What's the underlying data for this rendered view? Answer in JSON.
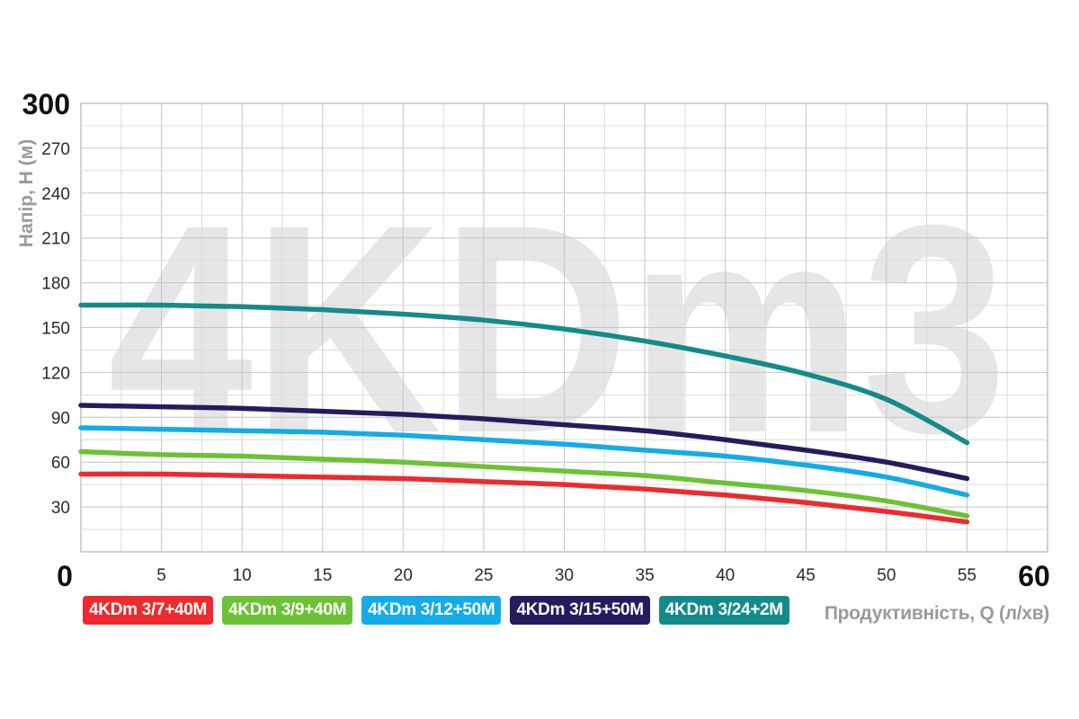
{
  "chart_data": {
    "type": "line",
    "watermark": "4KDm3",
    "ylabel": "Напір, Н (м)",
    "xlabel": "Продуктивність, Q (л/хв)",
    "xlim": [
      0,
      60
    ],
    "ylim": [
      0,
      300
    ],
    "x_ticks": [
      0,
      5,
      10,
      15,
      20,
      25,
      30,
      35,
      40,
      45,
      50,
      55,
      60
    ],
    "x_tick_labels": [
      "0",
      "5",
      "10",
      "15",
      "20",
      "25",
      "30",
      "35",
      "40",
      "45",
      "50",
      "55",
      "60"
    ],
    "y_ticks": [
      0,
      30,
      60,
      90,
      120,
      150,
      180,
      210,
      240,
      270,
      300
    ],
    "y_tick_labels": [
      "0",
      "30",
      "60",
      "90",
      "120",
      "150",
      "180",
      "210",
      "240",
      "270",
      "300"
    ],
    "grid": true,
    "legend_position": "bottom-left",
    "series": [
      {
        "name": "4KDm 3/7+40M",
        "color": "#ee2a2e",
        "x": [
          0,
          5,
          10,
          15,
          20,
          25,
          30,
          35,
          40,
          45,
          50,
          55
        ],
        "y": [
          52,
          52,
          51,
          50,
          49,
          47,
          45,
          42,
          38,
          33,
          27,
          20
        ]
      },
      {
        "name": "4KDm 3/9+40M",
        "color": "#6cc234",
        "x": [
          0,
          5,
          10,
          15,
          20,
          25,
          30,
          35,
          40,
          45,
          50,
          55
        ],
        "y": [
          67,
          65,
          64,
          62,
          60,
          57,
          54,
          51,
          46,
          41,
          34,
          24
        ]
      },
      {
        "name": "4KDm 3/12+50M",
        "color": "#13ace6",
        "x": [
          0,
          5,
          10,
          15,
          20,
          25,
          30,
          35,
          40,
          45,
          50,
          55
        ],
        "y": [
          83,
          82,
          81,
          80,
          78,
          75,
          72,
          68,
          64,
          58,
          50,
          38
        ]
      },
      {
        "name": "4KDm 3/15+50M",
        "color": "#271b5e",
        "x": [
          0,
          5,
          10,
          15,
          20,
          25,
          30,
          35,
          40,
          45,
          50,
          55
        ],
        "y": [
          98,
          97,
          96,
          94,
          92,
          89,
          85,
          81,
          75,
          68,
          60,
          49
        ]
      },
      {
        "name": "4KDm 3/24+2M",
        "color": "#138b8a",
        "x": [
          0,
          5,
          10,
          15,
          20,
          25,
          30,
          35,
          40,
          45,
          50,
          55
        ],
        "y": [
          165,
          165,
          164,
          162,
          159,
          155,
          149,
          141,
          131,
          119,
          102,
          73
        ]
      }
    ]
  }
}
